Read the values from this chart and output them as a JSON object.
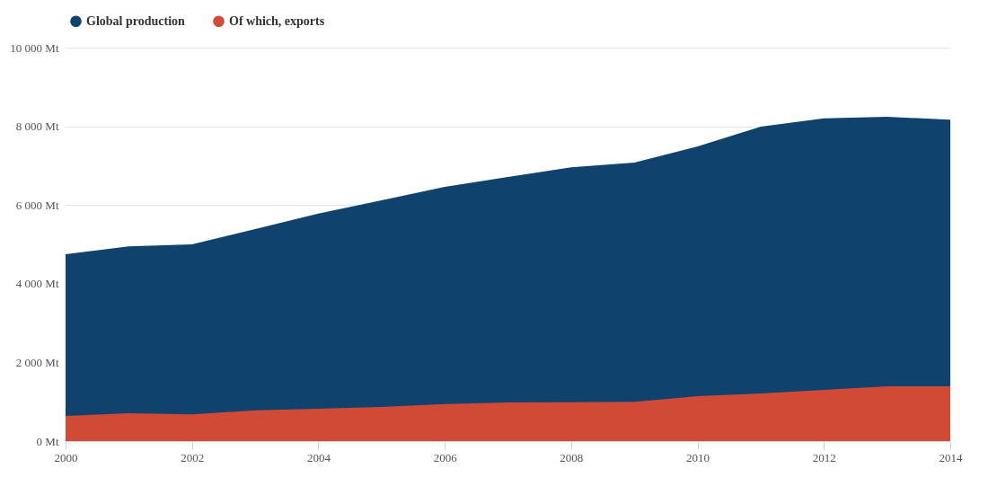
{
  "chart_data": {
    "type": "area",
    "x": [
      2000,
      2001,
      2002,
      2003,
      2004,
      2005,
      2006,
      2007,
      2008,
      2009,
      2010,
      2011,
      2012,
      2013,
      2014
    ],
    "series": [
      {
        "name": "Global production",
        "color": "#10426e",
        "values": [
          4750,
          4950,
          5000,
          5390,
          5780,
          6120,
          6460,
          6710,
          6960,
          7080,
          7490,
          7990,
          8200,
          8240,
          8170
        ]
      },
      {
        "name": "Of which, exports",
        "color": "#d04a35",
        "values": [
          640,
          710,
          680,
          780,
          820,
          870,
          940,
          980,
          990,
          1000,
          1140,
          1210,
          1300,
          1390,
          1390
        ]
      }
    ],
    "xlim": [
      2000,
      2014
    ],
    "xticks": [
      2000,
      2002,
      2004,
      2006,
      2008,
      2010,
      2012,
      2014
    ],
    "ylim": [
      0,
      10000
    ],
    "yticks": [
      {
        "value": 0,
        "label": "0 Mt"
      },
      {
        "value": 2000,
        "label": "2 000 Mt"
      },
      {
        "value": 4000,
        "label": "4 000 Mt"
      },
      {
        "value": 6000,
        "label": "6 000 Mt"
      },
      {
        "value": 8000,
        "label": "8 000 Mt"
      },
      {
        "value": 10000,
        "label": "10 000 Mt"
      }
    ],
    "grid": "y",
    "legend": "top"
  }
}
